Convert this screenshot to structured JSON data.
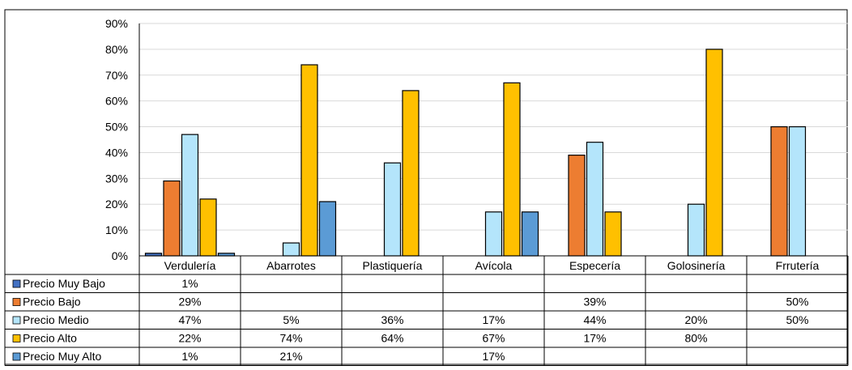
{
  "chart_data": {
    "type": "bar",
    "title": "",
    "xlabel": "",
    "ylabel": "",
    "ylim": [
      0,
      90
    ],
    "y_ticks": [
      0,
      10,
      20,
      30,
      40,
      50,
      60,
      70,
      80,
      90
    ],
    "y_tick_labels": [
      "0%",
      "10%",
      "20%",
      "30%",
      "40%",
      "50%",
      "60%",
      "70%",
      "80%",
      "90%"
    ],
    "grid": true,
    "legend": "data-table-bottom",
    "categories": [
      "Verdulería",
      "Abarrotes",
      "Plastiquería",
      "Avícola",
      "Especería",
      "Golosinería",
      "Frrutería"
    ],
    "series": [
      {
        "name": "Precio Muy Bajo",
        "color": "#4472c4",
        "values": [
          1,
          null,
          null,
          null,
          null,
          null,
          null
        ],
        "labels": [
          "1%",
          "",
          "",
          "",
          "",
          "",
          ""
        ]
      },
      {
        "name": "Precio Bajo",
        "color": "#ed7d31",
        "values": [
          29,
          null,
          null,
          null,
          39,
          null,
          50
        ],
        "labels": [
          "29%",
          "",
          "",
          "",
          "39%",
          "",
          "50%"
        ]
      },
      {
        "name": "Precio Medio",
        "color": "#b4e5fb",
        "values": [
          47,
          5,
          36,
          17,
          44,
          20,
          50
        ],
        "labels": [
          "47%",
          "5%",
          "36%",
          "17%",
          "44%",
          "20%",
          "50%"
        ]
      },
      {
        "name": "Precio Alto",
        "color": "#ffc000",
        "values": [
          22,
          74,
          64,
          67,
          17,
          80,
          null
        ],
        "labels": [
          "22%",
          "74%",
          "64%",
          "67%",
          "17%",
          "80%",
          ""
        ]
      },
      {
        "name": "Precio Muy Alto",
        "color": "#5b9bd5",
        "values": [
          1,
          21,
          null,
          17,
          null,
          null,
          null
        ],
        "labels": [
          "1%",
          "21%",
          "",
          "17%",
          "",
          "",
          ""
        ]
      }
    ]
  }
}
